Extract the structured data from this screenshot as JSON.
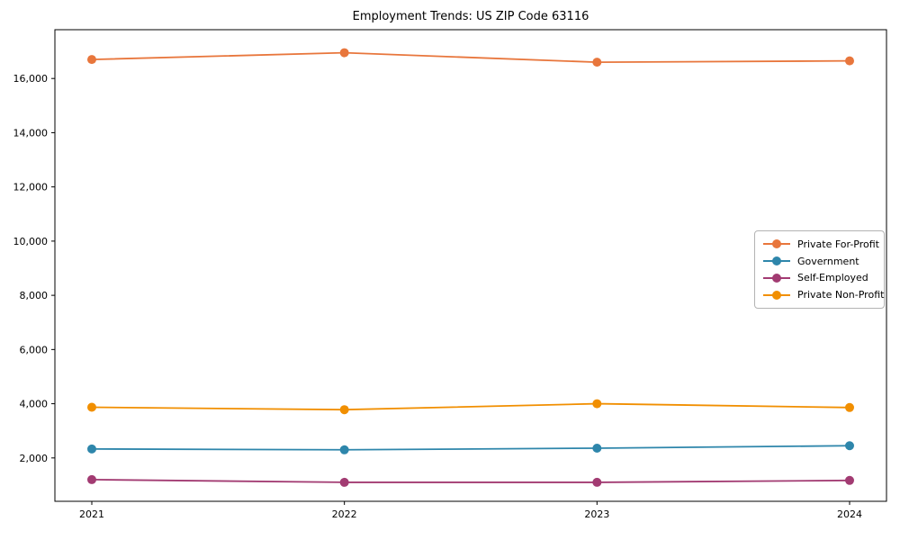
{
  "chart_data": {
    "type": "line",
    "title": "Employment Trends: US ZIP Code 63116",
    "xlabel": "",
    "ylabel": "",
    "x": [
      2021,
      2022,
      2023,
      2024
    ],
    "x_tick_labels": [
      "2021",
      "2022",
      "2023",
      "2024"
    ],
    "y_ticks": [
      2000,
      4000,
      6000,
      8000,
      10000,
      12000,
      14000,
      16000
    ],
    "y_tick_labels": [
      "2,000",
      "4,000",
      "6,000",
      "8,000",
      "10,000",
      "12,000",
      "14,000",
      "16,000"
    ],
    "ylim": [
      400,
      17800
    ],
    "grid": false,
    "legend_position": "center right",
    "axis_color": "#000000",
    "background_color": "#ffffff",
    "series": [
      {
        "name": "Private For-Profit",
        "color": "#E8763C",
        "values": [
          16700,
          16950,
          16600,
          16650
        ]
      },
      {
        "name": "Government",
        "color": "#2E86AB",
        "values": [
          2330,
          2300,
          2360,
          2450
        ]
      },
      {
        "name": "Self-Employed",
        "color": "#A23B72",
        "values": [
          1200,
          1100,
          1100,
          1170
        ]
      },
      {
        "name": "Private Non-Profit",
        "color": "#F18F01",
        "values": [
          3870,
          3780,
          4000,
          3860
        ]
      }
    ]
  }
}
